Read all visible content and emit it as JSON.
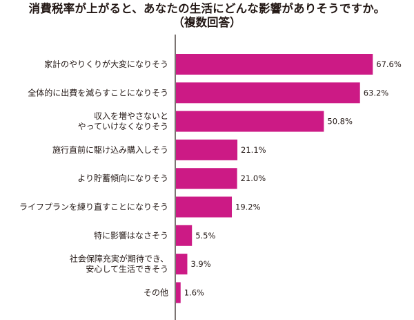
{
  "title": "消費税率が上がると、あなたの生活にどんな影響がありそうですか。",
  "subtitle": "（複数回答）",
  "chart_data": {
    "type": "bar",
    "orientation": "horizontal",
    "title": "消費税率が上がると、あなたの生活にどんな影響がありそうですか。",
    "subtitle": "（複数回答）",
    "bar_color": "#cc1a85",
    "categories": [
      "家計のやりくりが大変になりそう",
      "全体的に出費を減らすことになりそう",
      "収入を増やさないと\nやっていけなくなりそう",
      "施行直前に駆け込み購入しそう",
      "より貯蓄傾向になりそう",
      "ライフプランを練り直すことになりそう",
      "特に影響はなさそう",
      "社会保障充実が期待でき、\n安心して生活できそう",
      "その他"
    ],
    "values": [
      67.6,
      63.2,
      50.8,
      21.1,
      21.0,
      19.2,
      5.5,
      3.9,
      1.6
    ],
    "value_labels": [
      "67.6%",
      "63.2%",
      "50.8%",
      "21.1%",
      "21.0%",
      "19.2%",
      "5.5%",
      "3.9%",
      "1.6%"
    ],
    "xlim": [
      0,
      100
    ],
    "grid": false,
    "legend": "none"
  }
}
